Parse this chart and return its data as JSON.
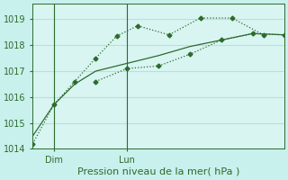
{
  "bg_color": "#c8f0ec",
  "plot_bg_color": "#d8f5f2",
  "grid_color": "#b8e0dc",
  "line_color": "#2d6b2d",
  "ylim": [
    1014.0,
    1019.6
  ],
  "yticks": [
    1014,
    1015,
    1016,
    1017,
    1018,
    1019
  ],
  "xlim": [
    0,
    12
  ],
  "dim_x": 1.0,
  "lun_x": 4.5,
  "line1_x": [
    0.0,
    1.0,
    2.0,
    3.0,
    4.0,
    5.0,
    6.5,
    8.0,
    9.5,
    11.0
  ],
  "line1_y": [
    1014.2,
    1015.7,
    1016.6,
    1017.5,
    1018.35,
    1018.75,
    1018.4,
    1019.05,
    1019.05,
    1018.4
  ],
  "line2_x": [
    3.0,
    4.5,
    6.0,
    7.5,
    9.0,
    10.5,
    12.0
  ],
  "line2_y": [
    1016.6,
    1017.1,
    1017.2,
    1017.65,
    1018.2,
    1018.45,
    1018.4
  ],
  "line3_x": [
    0.0,
    1.0,
    2.0,
    3.0,
    4.5,
    6.0,
    7.5,
    9.0,
    10.5,
    12.0
  ],
  "line3_y": [
    1014.5,
    1015.7,
    1016.5,
    1017.0,
    1017.3,
    1017.6,
    1017.95,
    1018.2,
    1018.45,
    1018.4
  ],
  "xlabel": "Pression niveau de la mer( hPa )",
  "xlabel_fontsize": 8,
  "tick_fontsize": 7
}
